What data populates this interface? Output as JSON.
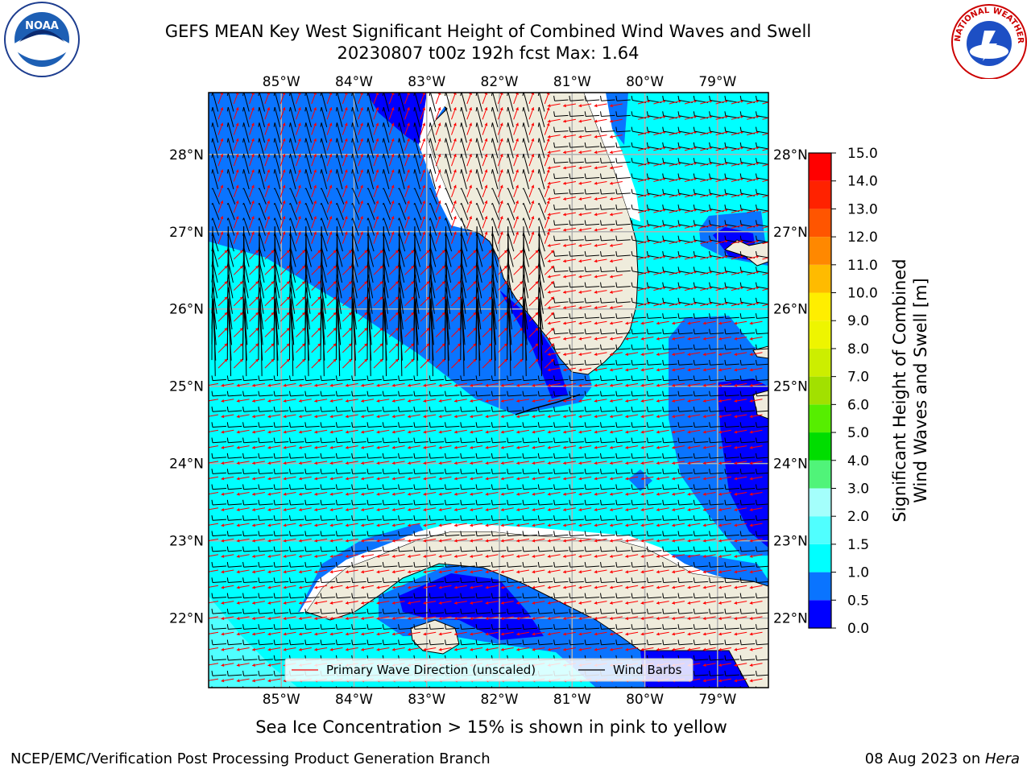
{
  "title_line1": "GEFS MEAN Key West Significant Height of Combined Wind Waves and Swell",
  "title_line2": "20230807 t00z 192h fcst   Max: 1.64",
  "sea_ice_note": "Sea Ice Concentration > 15% is shown in pink to yellow",
  "footer_left": "NCEP/EMC/Verification Post Processing Product Generation Branch",
  "footer_right_date": "08 Aug 2023 on ",
  "footer_right_host": "Hera",
  "logos": {
    "left": "NOAA",
    "right": "NATIONAL WEATHER SERVICE"
  },
  "chart_data": {
    "type": "heatmap",
    "title": "GEFS MEAN Key West Significant Height of Combined Wind Waves and Swell",
    "max_value": 1.64,
    "lon_ticks": [
      "85°W",
      "84°W",
      "83°W",
      "82°W",
      "81°W",
      "80°W",
      "79°W"
    ],
    "lat_ticks": [
      "28°N",
      "27°N",
      "26°N",
      "25°N",
      "24°N",
      "23°N",
      "22°N"
    ],
    "lon_range": [
      -86.0,
      -78.3
    ],
    "lat_range": [
      21.1,
      28.8
    ],
    "grid": true,
    "legend_position": "bottom-center",
    "legend": [
      "Primary Wave Direction (unscaled)",
      "Wind Barbs"
    ],
    "colorbar": {
      "label": "Significant Height of Combined Wind Waves and Swell [m]",
      "label_line1": "Significant Height of Combined",
      "label_line2": "Wind Waves and Swell [m]",
      "ticks": [
        "0.0",
        "0.5",
        "1.0",
        "1.5",
        "2.0",
        "3.0",
        "4.0",
        "5.0",
        "6.0",
        "7.0",
        "8.0",
        "9.0",
        "10.0",
        "11.0",
        "12.0",
        "13.0",
        "14.0",
        "15.0"
      ],
      "bands": [
        {
          "from": 0.0,
          "to": 0.5,
          "color": "#0000ff"
        },
        {
          "from": 0.5,
          "to": 1.0,
          "color": "#0a74ff"
        },
        {
          "from": 1.0,
          "to": 1.5,
          "color": "#00ffff"
        },
        {
          "from": 1.5,
          "to": 2.0,
          "color": "#50ffff"
        },
        {
          "from": 2.0,
          "to": 3.0,
          "color": "#a4fffc"
        },
        {
          "from": 3.0,
          "to": 4.0,
          "color": "#50f479"
        },
        {
          "from": 4.0,
          "to": 5.0,
          "color": "#00dd00"
        },
        {
          "from": 5.0,
          "to": 6.0,
          "color": "#56ee00"
        },
        {
          "from": 6.0,
          "to": 7.0,
          "color": "#a2e000"
        },
        {
          "from": 7.0,
          "to": 8.0,
          "color": "#ccee00"
        },
        {
          "from": 8.0,
          "to": 9.0,
          "color": "#eef500"
        },
        {
          "from": 9.0,
          "to": 10.0,
          "color": "#ffee00"
        },
        {
          "from": 10.0,
          "to": 11.0,
          "color": "#ffbb00"
        },
        {
          "from": 11.0,
          "to": 12.0,
          "color": "#ff8800"
        },
        {
          "from": 12.0,
          "to": 13.0,
          "color": "#ff5500"
        },
        {
          "from": 13.0,
          "to": 14.0,
          "color": "#ff2200"
        },
        {
          "from": 14.0,
          "to": 15.0,
          "color": "#ff0000"
        }
      ]
    },
    "colors": {
      "land": "#efecdc",
      "coast": "#000000",
      "grid": "#b0b0b0",
      "wave_arrow": "#ff0000",
      "barb": "#000000"
    }
  }
}
